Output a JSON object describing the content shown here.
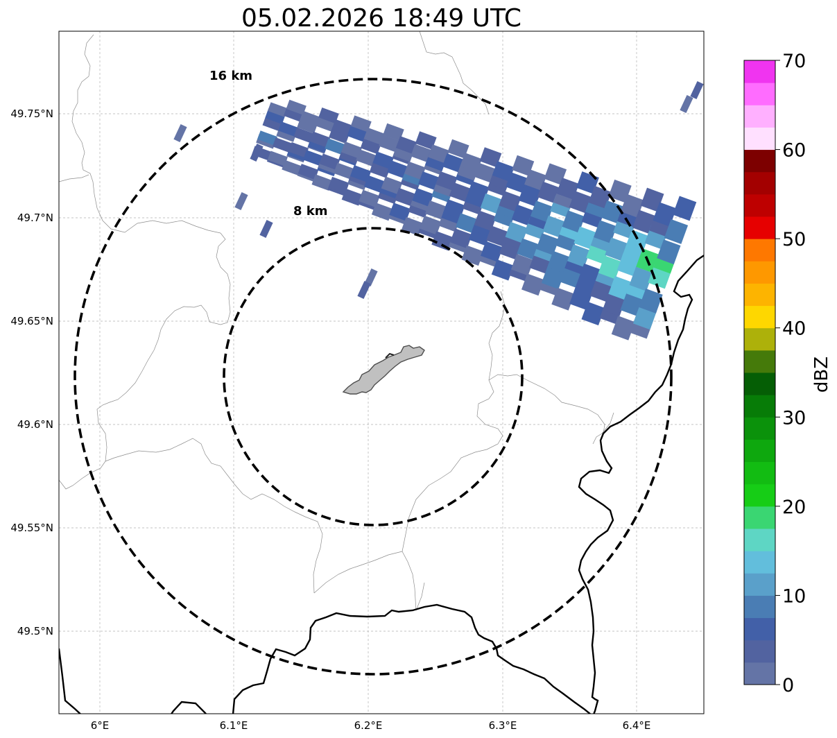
{
  "title": "05.02.2026 18:49 UTC",
  "map": {
    "lon_ticks": [
      "6°E",
      "6.1°E",
      "6.2°E",
      "6.3°E",
      "6.4°E"
    ],
    "lat_ticks": [
      "49.75°N",
      "49.7°N",
      "49.65°N",
      "49.6°N",
      "49.55°N",
      "49.5°N"
    ],
    "range_rings": [
      {
        "label": "16 km",
        "radius_km": 16
      },
      {
        "label": "8 km",
        "radius_km": 8
      }
    ],
    "colors": {
      "country_border": "#000000",
      "admin_border": "#8c8c8c",
      "gridline": "#b0b0b0",
      "site_fill": "#c0c0c0",
      "site_outline": "#4d4d4d"
    },
    "echo_band": {
      "direction": "east-northeast",
      "max_dbz": 24
    }
  },
  "colorbar": {
    "label": "dBZ",
    "ticks": [
      "0",
      "10",
      "20",
      "30",
      "40",
      "50",
      "60",
      "70"
    ],
    "bins": [
      "#6474a6",
      "#5263a0",
      "#4260a8",
      "#4a7db4",
      "#5aa0ca",
      "#62bedc",
      "#5ed6c4",
      "#3ad672",
      "#16cd16",
      "#12bc12",
      "#0ea80e",
      "#0b920b",
      "#077c07",
      "#055e05",
      "#457a0a",
      "#adb10a",
      "#fed700",
      "#fdb400",
      "#fe9800",
      "#fe7800",
      "#e60000",
      "#be0000",
      "#a30000",
      "#7d0000",
      "#ffe0ff",
      "#ffb0ff",
      "#ff6cff",
      "#f034f0"
    ]
  }
}
